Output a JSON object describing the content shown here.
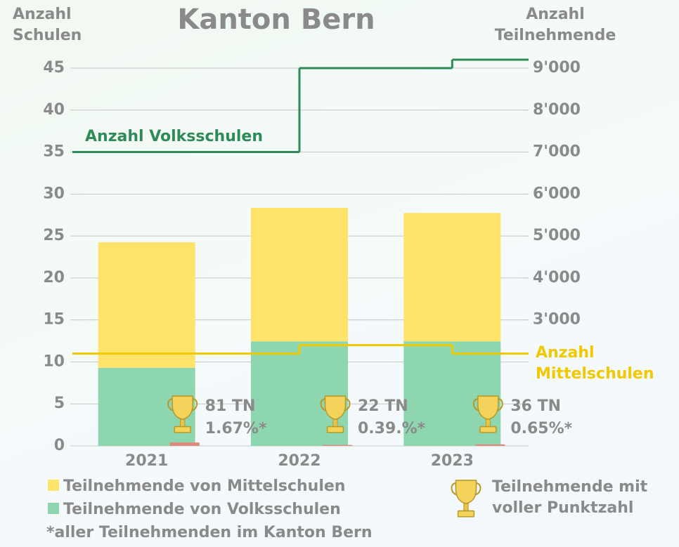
{
  "chart_data": {
    "type": "bar",
    "title": "Kanton Bern",
    "y_label": "Anzahl Schulen",
    "y2_label": "Anzahl Teilnehmende",
    "categories": [
      "2021",
      "2022",
      "2023"
    ],
    "ylim": [
      0,
      45
    ],
    "yticks": [
      0,
      5,
      10,
      15,
      20,
      25,
      30,
      35,
      40,
      45
    ],
    "y2lim": [
      0,
      9000
    ],
    "y2ticks": [
      {
        "value": 3000,
        "label": "3'000"
      },
      {
        "value": 4000,
        "label": "4'000"
      },
      {
        "value": 5000,
        "label": "5'000"
      },
      {
        "value": 6000,
        "label": "6'000"
      },
      {
        "value": 7000,
        "label": "7'000"
      },
      {
        "value": 8000,
        "label": "8'000"
      },
      {
        "value": 9000,
        "label": "9'000"
      }
    ],
    "grid": true,
    "series": [
      {
        "name": "Teilnehmende von Volksschulen",
        "color": "#8ed6b0",
        "axis": "y2",
        "stack": true,
        "values": [
          1860,
          2490,
          2490
        ]
      },
      {
        "name": "Teilnehmende von Mittelschulen",
        "color": "#fde36a",
        "axis": "y2",
        "stack": true,
        "values": [
          2990,
          3180,
          3060
        ]
      },
      {
        "name": "Teilnehmende mit voller Punktzahl",
        "color": "#e0877c",
        "axis": "y2",
        "values": [
          81,
          22,
          36
        ],
        "value_labels": [
          "81 TN",
          "22 TN",
          "36 TN"
        ],
        "percentages": [
          1.67,
          0.39,
          0.65
        ],
        "percentage_labels": [
          "1.67%*",
          "0.39.%*",
          "0.65%*"
        ]
      },
      {
        "name": "Anzahl Volksschulen",
        "color": "#2e8b57",
        "type": "step",
        "values": [
          35,
          45,
          46
        ]
      },
      {
        "name": "Anzahl Mittelschulen",
        "color": "#f2c800",
        "type": "step",
        "values": [
          11,
          12,
          11
        ]
      }
    ],
    "note": "*aller Teilnehmenden im Kanton Bern"
  }
}
